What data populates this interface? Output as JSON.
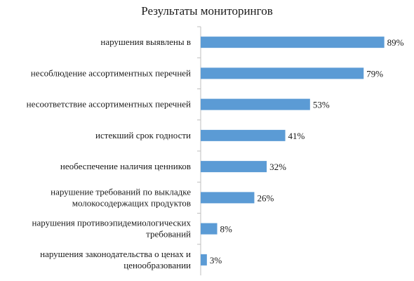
{
  "chart_data": {
    "type": "bar",
    "orientation": "horizontal",
    "title": "Результаты мониторингов",
    "categories": [
      [
        "нарушения выявлены в"
      ],
      [
        "несоблюдение ассортиментных перечней"
      ],
      [
        "несоответствие ассортиментных перечней"
      ],
      [
        "истекший срок годности"
      ],
      [
        "необеспечение наличия ценников"
      ],
      [
        "нарушение требований по выкладке",
        "молокосодержащих продуктов"
      ],
      [
        "нарушения противоэпидемиологических",
        "требований"
      ],
      [
        "нарушения законодательства о ценах и",
        "ценообразовании"
      ]
    ],
    "values": [
      89,
      79,
      53,
      41,
      32,
      26,
      8,
      3
    ],
    "value_labels": [
      "89%",
      "79%",
      "53%",
      "41%",
      "32%",
      "26%",
      "8%",
      "3%"
    ],
    "xlim": [
      0,
      100
    ],
    "grid": false,
    "legend": "none",
    "bar_color": "#5b9bd5",
    "axis_color": "#bfbfbf"
  }
}
